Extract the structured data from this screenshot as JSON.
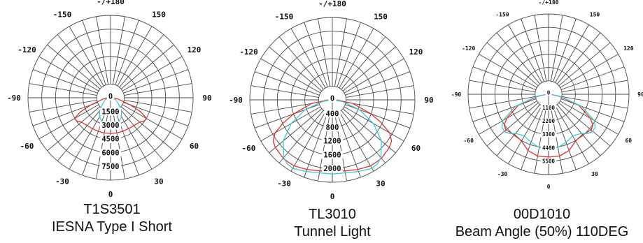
{
  "colors": {
    "red_curve": "#e0302a",
    "cyan_curve": "#3fc7cf",
    "grid": "#4a4a4a"
  },
  "chart_data": [
    {
      "type": "polar",
      "title": "T1S3501",
      "subtitle": "IESNA Type I Short",
      "angle_labels": [
        "-/+180",
        "150",
        "120",
        "90",
        "60",
        "30",
        "0",
        "-30",
        "-60",
        "-90",
        "-120",
        "-150"
      ],
      "radial_labels": [
        "0",
        "1500",
        "3000",
        "4500",
        "6000",
        "7500"
      ],
      "rmax": 7500,
      "series": [
        {
          "color": "#e0302a",
          "points": [
            [
              -90,
              300
            ],
            [
              -80,
              700
            ],
            [
              -70,
              1900
            ],
            [
              -65,
              3000
            ],
            [
              -60,
              3800
            ],
            [
              -55,
              3700
            ],
            [
              -50,
              3450
            ],
            [
              -40,
              3300
            ],
            [
              -30,
              3250
            ],
            [
              -20,
              3250
            ],
            [
              -10,
              3250
            ],
            [
              0,
              3250
            ],
            [
              10,
              3250
            ],
            [
              20,
              3250
            ],
            [
              30,
              3250
            ],
            [
              40,
              3300
            ],
            [
              50,
              3450
            ],
            [
              55,
              3700
            ],
            [
              60,
              3800
            ],
            [
              65,
              3000
            ],
            [
              70,
              1900
            ],
            [
              80,
              700
            ],
            [
              90,
              300
            ]
          ]
        },
        {
          "color": "#3fc7cf",
          "points": [
            [
              -90,
              150
            ],
            [
              -70,
              500
            ],
            [
              -50,
              1000
            ],
            [
              -40,
              1500
            ],
            [
              -30,
              2000
            ],
            [
              -20,
              2300
            ],
            [
              -10,
              2450
            ],
            [
              0,
              2500
            ],
            [
              10,
              2450
            ],
            [
              20,
              2300
            ],
            [
              30,
              2000
            ],
            [
              40,
              1500
            ],
            [
              50,
              1000
            ],
            [
              70,
              500
            ],
            [
              90,
              150
            ]
          ]
        }
      ]
    },
    {
      "type": "polar",
      "title": "TL3010",
      "subtitle": "Tunnel Light",
      "angle_labels": [
        "-/+180",
        "150",
        "120",
        "90",
        "60",
        "30",
        "0",
        "-30",
        "-60",
        "-90",
        "-120",
        "-150"
      ],
      "radial_labels": [
        "0",
        "400",
        "800",
        "1200",
        "1600",
        "2000"
      ],
      "rmax": 2000,
      "series": [
        {
          "color": "#e0302a",
          "points": [
            [
              -90,
              100
            ],
            [
              -80,
              500
            ],
            [
              -70,
              1000
            ],
            [
              -65,
              1300
            ],
            [
              -60,
              1600
            ],
            [
              -55,
              1750
            ],
            [
              -50,
              1800
            ],
            [
              -45,
              1820
            ],
            [
              -40,
              1850
            ],
            [
              -35,
              1850
            ],
            [
              -30,
              1850
            ],
            [
              -20,
              1800
            ],
            [
              -10,
              1750
            ],
            [
              0,
              1750
            ],
            [
              10,
              1750
            ],
            [
              20,
              1800
            ],
            [
              30,
              1850
            ],
            [
              35,
              1850
            ],
            [
              40,
              1850
            ],
            [
              45,
              1820
            ],
            [
              50,
              1800
            ],
            [
              55,
              1750
            ],
            [
              60,
              1600
            ],
            [
              65,
              1300
            ],
            [
              70,
              1000
            ],
            [
              80,
              500
            ],
            [
              90,
              100
            ]
          ]
        },
        {
          "color": "#3fc7cf",
          "points": [
            [
              -90,
              50
            ],
            [
              -80,
              250
            ],
            [
              -70,
              700
            ],
            [
              -60,
              1150
            ],
            [
              -50,
              1550
            ],
            [
              -40,
              1830
            ],
            [
              -35,
              1900
            ],
            [
              -30,
              1920
            ],
            [
              -20,
              1850
            ],
            [
              -10,
              1800
            ],
            [
              0,
              1800
            ],
            [
              10,
              1800
            ],
            [
              20,
              1850
            ],
            [
              30,
              1920
            ],
            [
              35,
              1900
            ],
            [
              40,
              1830
            ],
            [
              50,
              1550
            ],
            [
              60,
              1150
            ],
            [
              70,
              700
            ],
            [
              80,
              250
            ],
            [
              90,
              50
            ]
          ]
        }
      ]
    },
    {
      "type": "polar",
      "title": "00D1010",
      "subtitle": "Beam Angle (50%) 110DEG",
      "angle_labels": [
        "-/+180",
        "150",
        "120",
        "90",
        "60",
        "30",
        "0",
        "-30",
        "-60",
        "-90",
        "-120",
        "-150"
      ],
      "radial_labels": [
        "0",
        "1100",
        "2200",
        "3300",
        "4400",
        "5500"
      ],
      "rmax": 5500,
      "series": [
        {
          "color": "#e0302a",
          "points": [
            [
              -90,
              100
            ],
            [
              -80,
              700
            ],
            [
              -70,
              2200
            ],
            [
              -60,
              3300
            ],
            [
              -55,
              3700
            ],
            [
              -50,
              3800
            ],
            [
              -45,
              3700
            ],
            [
              -40,
              3600
            ],
            [
              -30,
              3700
            ],
            [
              -20,
              4100
            ],
            [
              -10,
              4300
            ],
            [
              0,
              4300
            ],
            [
              10,
              4300
            ],
            [
              20,
              4100
            ],
            [
              30,
              3700
            ],
            [
              40,
              3600
            ],
            [
              45,
              3700
            ],
            [
              50,
              3800
            ],
            [
              55,
              3700
            ],
            [
              60,
              3300
            ],
            [
              70,
              2200
            ],
            [
              80,
              700
            ],
            [
              90,
              100
            ]
          ]
        },
        {
          "color": "#3fc7cf",
          "points": [
            [
              -90,
              100
            ],
            [
              -80,
              800
            ],
            [
              -70,
              2400
            ],
            [
              -60,
              3600
            ],
            [
              -55,
              3900
            ],
            [
              -50,
              3950
            ],
            [
              -45,
              3800
            ],
            [
              -40,
              3500
            ],
            [
              -30,
              3300
            ],
            [
              -20,
              3500
            ],
            [
              -10,
              3700
            ],
            [
              0,
              3750
            ],
            [
              10,
              3700
            ],
            [
              20,
              3500
            ],
            [
              30,
              3300
            ],
            [
              40,
              3500
            ],
            [
              45,
              3800
            ],
            [
              50,
              3950
            ],
            [
              55,
              3900
            ],
            [
              60,
              3600
            ],
            [
              70,
              2400
            ],
            [
              80,
              800
            ],
            [
              90,
              100
            ]
          ]
        }
      ]
    }
  ]
}
